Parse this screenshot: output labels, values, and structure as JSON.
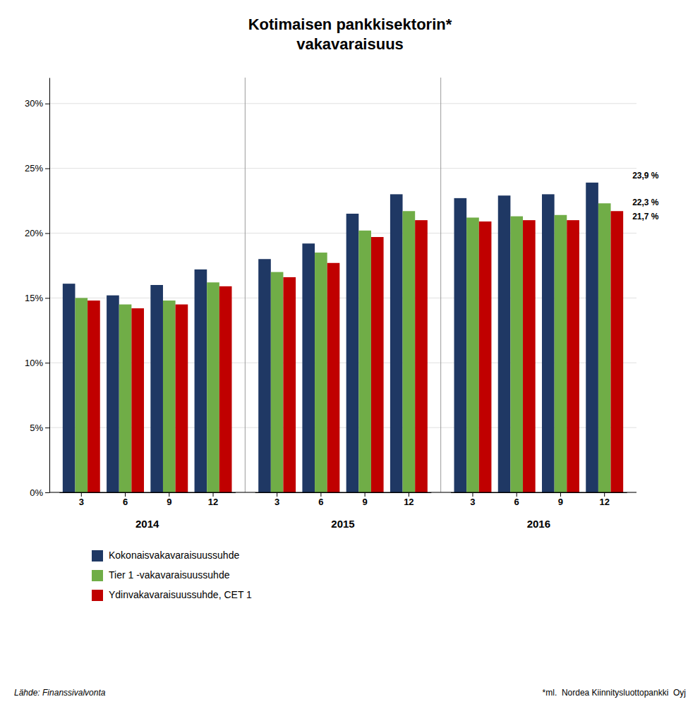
{
  "chart_data": {
    "type": "bar",
    "title": "Kotimaisen pankkisektorin*\nvakavaraisuus",
    "groups": [
      "2014",
      "2015",
      "2016"
    ],
    "categories": [
      "3",
      "6",
      "9",
      "12",
      "3",
      "6",
      "9",
      "12",
      "3",
      "6",
      "9",
      "12"
    ],
    "series": [
      {
        "name": "Kokonaisvakavaraisuussuhde",
        "color": "#1F3864",
        "values": [
          16.1,
          15.2,
          16.0,
          17.2,
          18.0,
          19.2,
          21.5,
          23.0,
          22.7,
          22.9,
          23.0,
          23.9
        ]
      },
      {
        "name": "Tier 1 -vakavaraisuussuhde",
        "color": "#70AD47",
        "values": [
          15.0,
          14.5,
          14.8,
          16.2,
          17.0,
          18.5,
          20.2,
          21.7,
          21.2,
          21.3,
          21.4,
          22.3
        ]
      },
      {
        "name": "Ydinvakavaraisuussuhde, CET 1",
        "color": "#C00000",
        "values": [
          14.8,
          14.2,
          14.5,
          15.9,
          16.6,
          17.7,
          19.7,
          21.0,
          20.9,
          21.0,
          21.0,
          21.7
        ]
      }
    ],
    "ylim": [
      0,
      32
    ],
    "yticks": [
      {
        "value": 0,
        "label": "0%"
      },
      {
        "value": 5,
        "label": "5%"
      },
      {
        "value": 10,
        "label": "10%"
      },
      {
        "value": 15,
        "label": "15%"
      },
      {
        "value": 20,
        "label": "20%"
      },
      {
        "value": 25,
        "label": "25%"
      },
      {
        "value": 30,
        "label": "30%"
      }
    ],
    "annotations": [
      "23,9 %",
      "22,3 %",
      "21,7 %"
    ],
    "source": "Lähde: Finanssivalvonta",
    "note": "*ml.  Nordea Kiinnitysluottopankki  Oyj",
    "grid": true,
    "legend": "bottom"
  }
}
